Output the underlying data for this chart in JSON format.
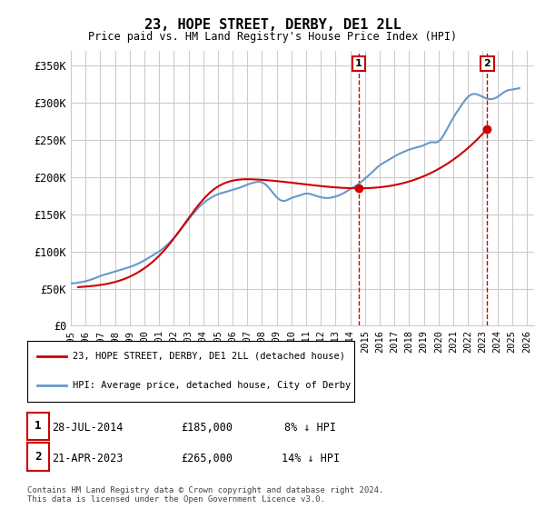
{
  "title": "23, HOPE STREET, DERBY, DE1 2LL",
  "subtitle": "Price paid vs. HM Land Registry's House Price Index (HPI)",
  "ylabel_ticks": [
    "£0",
    "£50K",
    "£100K",
    "£150K",
    "£200K",
    "£250K",
    "£300K",
    "£350K"
  ],
  "ytick_values": [
    0,
    50000,
    100000,
    150000,
    200000,
    250000,
    300000,
    350000
  ],
  "ylim": [
    0,
    370000
  ],
  "xlim_start": 1995.0,
  "xlim_end": 2026.5,
  "sale1": {
    "date_num": 2014.57,
    "price": 185000,
    "label": "1",
    "date_str": "28-JUL-2014",
    "pct": "8%",
    "direction": "↓"
  },
  "sale2": {
    "date_num": 2023.31,
    "price": 265000,
    "label": "2",
    "date_str": "21-APR-2023",
    "pct": "14%",
    "direction": "↓"
  },
  "legend_line1": "23, HOPE STREET, DERBY, DE1 2LL (detached house)",
  "legend_line2": "HPI: Average price, detached house, City of Derby",
  "footer": "Contains HM Land Registry data © Crown copyright and database right 2024.\nThis data is licensed under the Open Government Licence v3.0.",
  "line_color_red": "#cc0000",
  "line_color_blue": "#6699cc",
  "annotation_box_color": "#cc0000",
  "background_color": "#ffffff",
  "grid_color": "#cccccc",
  "hpi_years": [
    1995.0,
    1995.5,
    1996.0,
    1996.5,
    1997.0,
    1997.5,
    1998.0,
    1998.5,
    1999.0,
    1999.5,
    2000.0,
    2000.5,
    2001.0,
    2001.5,
    2002.0,
    2002.5,
    2003.0,
    2003.5,
    2004.0,
    2004.5,
    2005.0,
    2005.5,
    2006.0,
    2006.5,
    2007.0,
    2007.5,
    2008.0,
    2008.5,
    2009.0,
    2009.5,
    2010.0,
    2010.5,
    2011.0,
    2011.5,
    2012.0,
    2012.5,
    2013.0,
    2013.5,
    2014.0,
    2014.5,
    2015.0,
    2015.5,
    2016.0,
    2016.5,
    2017.0,
    2017.5,
    2018.0,
    2018.5,
    2019.0,
    2019.5,
    2020.0,
    2020.5,
    2021.0,
    2021.5,
    2022.0,
    2022.5,
    2023.0,
    2023.5,
    2024.0,
    2024.5,
    2025.0,
    2025.5
  ],
  "hpi_values": [
    57000,
    58000,
    60000,
    63000,
    67000,
    70000,
    73000,
    76000,
    79000,
    83000,
    88000,
    94000,
    100000,
    108000,
    118000,
    130000,
    143000,
    155000,
    165000,
    172000,
    177000,
    180000,
    183000,
    186000,
    190000,
    193000,
    193000,
    185000,
    173000,
    168000,
    172000,
    175000,
    178000,
    176000,
    173000,
    172000,
    174000,
    178000,
    184000,
    190000,
    198000,
    207000,
    216000,
    222000,
    228000,
    233000,
    237000,
    240000,
    243000,
    247000,
    248000,
    262000,
    280000,
    295000,
    308000,
    312000,
    308000,
    305000,
    308000,
    315000,
    318000,
    320000
  ],
  "price_years": [
    1995.5,
    1998.5,
    2001.5,
    2004.5,
    2007.5,
    2014.57,
    2023.31
  ],
  "price_values": [
    52000,
    62000,
    105000,
    180000,
    197000,
    185000,
    265000
  ],
  "xtick_years": [
    1995,
    1996,
    1997,
    1998,
    1999,
    2000,
    2001,
    2002,
    2003,
    2004,
    2005,
    2006,
    2007,
    2008,
    2009,
    2010,
    2011,
    2012,
    2013,
    2014,
    2015,
    2016,
    2017,
    2018,
    2019,
    2020,
    2021,
    2022,
    2023,
    2024,
    2025,
    2026
  ]
}
